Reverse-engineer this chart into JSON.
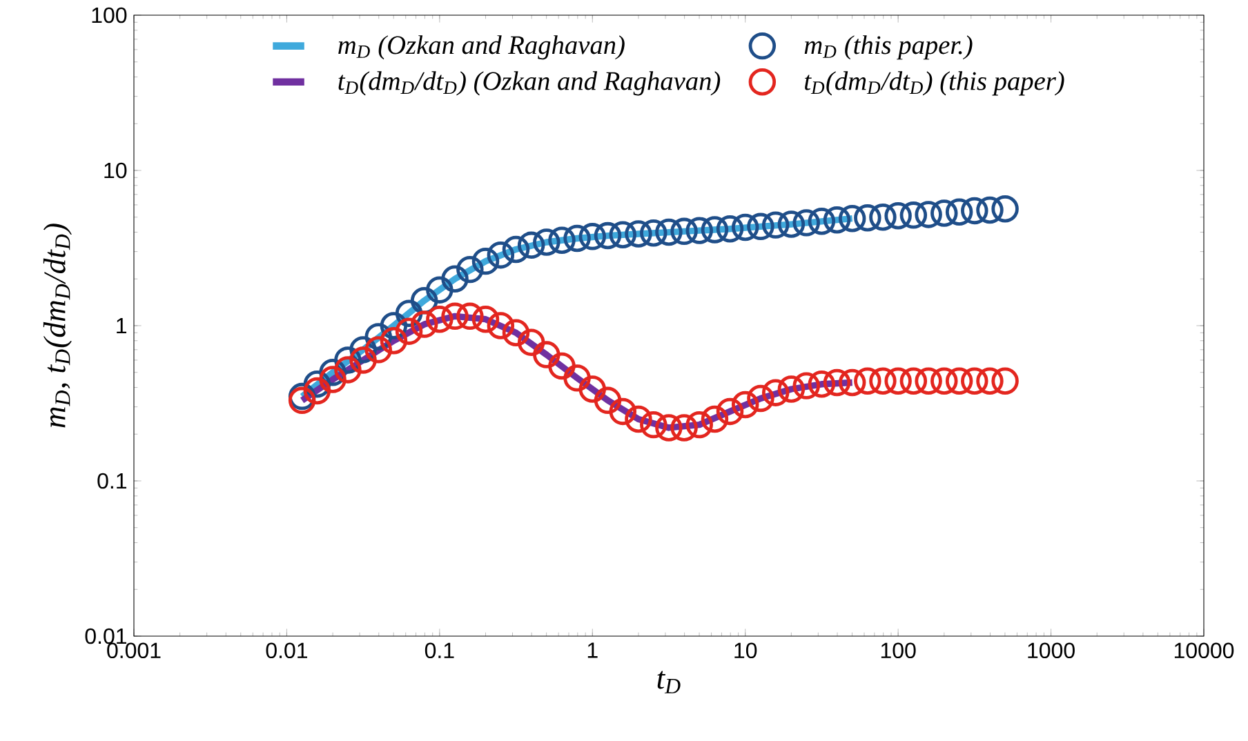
{
  "chart_data": {
    "type": "scatter",
    "xlabel": "t$_{D}$",
    "ylabel": "m$_{D}$,  t$_{D}$(dm$_{D}$/dt$_{D}$)",
    "log": "xy",
    "grid": false,
    "legend": "top",
    "xlim": [
      0.001,
      10000
    ],
    "ylim": [
      0.01,
      100
    ],
    "xticks": [
      0.001,
      0.01,
      0.1,
      1,
      10,
      100,
      1000,
      10000
    ],
    "yticks": [
      0.01,
      0.1,
      1,
      10,
      100
    ],
    "series": [
      {
        "name": "m$_{D}$ (Ozkan and Raghavan)",
        "type": "line",
        "marker": "none",
        "color": "#3fa9dc",
        "x": [
          0.0126,
          0.02,
          0.0316,
          0.0501,
          0.0794,
          0.126,
          0.2,
          0.316,
          0.501,
          0.794,
          1.26,
          2,
          3.16,
          5.01,
          7.94,
          12.6,
          20,
          31.6,
          50.1
        ],
        "values": [
          0.35,
          0.5,
          0.7,
          1.0,
          1.45,
          2.0,
          2.6,
          3.1,
          3.45,
          3.65,
          3.8,
          3.9,
          4.0,
          4.1,
          4.2,
          4.35,
          4.5,
          4.7,
          4.9
        ]
      },
      {
        "name": "m$_{D}$ (this paper.)",
        "marker": "circle",
        "color": "#1f4e89",
        "x": [
          0.0126,
          0.0158,
          0.02,
          0.0251,
          0.0316,
          0.0398,
          0.0501,
          0.0631,
          0.0794,
          0.1,
          0.126,
          0.158,
          0.2,
          0.251,
          0.316,
          0.398,
          0.501,
          0.631,
          0.794,
          1,
          1.26,
          1.58,
          2,
          2.51,
          3.16,
          3.98,
          5.01,
          6.31,
          7.94,
          10,
          12.6,
          15.8,
          20,
          25.1,
          31.6,
          39.8,
          50.1,
          63.1,
          79.4,
          100,
          126,
          158,
          200,
          251,
          316,
          398,
          501
        ],
        "values": [
          0.35,
          0.42,
          0.5,
          0.6,
          0.7,
          0.85,
          1.0,
          1.2,
          1.45,
          1.7,
          2.0,
          2.3,
          2.6,
          2.85,
          3.1,
          3.3,
          3.45,
          3.55,
          3.65,
          3.75,
          3.8,
          3.85,
          3.9,
          3.95,
          4.0,
          4.05,
          4.1,
          4.15,
          4.2,
          4.3,
          4.35,
          4.45,
          4.5,
          4.6,
          4.7,
          4.8,
          4.9,
          4.95,
          5.0,
          5.1,
          5.15,
          5.2,
          5.3,
          5.4,
          5.5,
          5.55,
          5.65
        ]
      },
      {
        "name": "t$_{D}$(dm$_{D}$/dt$_{D}$) (Ozkan and Raghavan)",
        "type": "line",
        "marker": "none",
        "color": "#7030a0",
        "x": [
          0.0126,
          0.02,
          0.0316,
          0.0501,
          0.0794,
          0.126,
          0.2,
          0.316,
          0.501,
          0.794,
          1.26,
          2,
          3.16,
          5.01,
          7.94,
          12.6,
          20,
          31.6,
          50.1
        ],
        "values": [
          0.33,
          0.45,
          0.6,
          0.8,
          1.02,
          1.15,
          1.1,
          0.9,
          0.65,
          0.46,
          0.33,
          0.25,
          0.22,
          0.23,
          0.28,
          0.34,
          0.39,
          0.42,
          0.43
        ]
      },
      {
        "name": "t$_{D}$(dm$_{D}$/dt$_{D}$) (this paper)",
        "marker": "circle",
        "color": "#e3261f",
        "x": [
          0.0126,
          0.0158,
          0.02,
          0.0251,
          0.0316,
          0.0398,
          0.0501,
          0.0631,
          0.0794,
          0.1,
          0.126,
          0.158,
          0.2,
          0.251,
          0.316,
          0.398,
          0.501,
          0.631,
          0.794,
          1,
          1.26,
          1.58,
          2,
          2.51,
          3.16,
          3.98,
          5.01,
          6.31,
          7.94,
          10,
          12.6,
          15.8,
          20,
          25.1,
          31.6,
          39.8,
          50.1,
          63.1,
          79.4,
          100,
          126,
          158,
          200,
          251,
          316,
          398,
          501
        ],
        "values": [
          0.33,
          0.38,
          0.45,
          0.52,
          0.6,
          0.7,
          0.8,
          0.92,
          1.02,
          1.1,
          1.15,
          1.15,
          1.1,
          1.0,
          0.9,
          0.78,
          0.65,
          0.55,
          0.46,
          0.39,
          0.33,
          0.28,
          0.25,
          0.23,
          0.22,
          0.22,
          0.23,
          0.25,
          0.28,
          0.31,
          0.34,
          0.37,
          0.39,
          0.41,
          0.42,
          0.43,
          0.43,
          0.44,
          0.44,
          0.44,
          0.44,
          0.44,
          0.44,
          0.44,
          0.44,
          0.44,
          0.44
        ]
      }
    ]
  }
}
